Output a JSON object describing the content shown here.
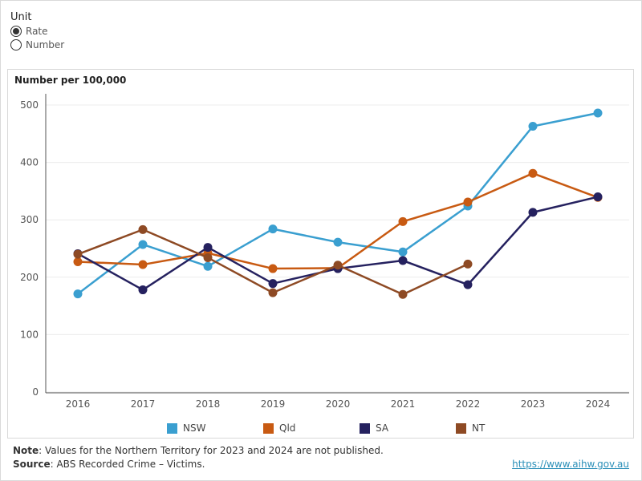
{
  "unit_selector": {
    "title": "Unit",
    "options": [
      {
        "label": "Rate",
        "selected": true
      },
      {
        "label": "Number",
        "selected": false
      }
    ]
  },
  "chart_data": {
    "type": "line",
    "ylabel": "Number per 100,000",
    "x": [
      "2016",
      "2017",
      "2018",
      "2019",
      "2020",
      "2021",
      "2022",
      "2023",
      "2024"
    ],
    "ylim": [
      0,
      500
    ],
    "yticks": [
      0,
      100,
      200,
      300,
      400,
      500
    ],
    "grid": true,
    "legend_position": "bottom",
    "series": [
      {
        "name": "NSW",
        "color": "#3a9fd0",
        "values": [
          171,
          257,
          219,
          284,
          261,
          244,
          324,
          463,
          486
        ]
      },
      {
        "name": "Qld",
        "color": "#c85a12",
        "values": [
          227,
          222,
          242,
          215,
          216,
          297,
          331,
          381,
          339
        ]
      },
      {
        "name": "SA",
        "color": "#25215f",
        "values": [
          241,
          178,
          252,
          189,
          215,
          229,
          187,
          313,
          340
        ]
      },
      {
        "name": "NT",
        "color": "#8e4a24",
        "values": [
          240,
          283,
          234,
          173,
          221,
          170,
          223,
          null,
          null
        ]
      }
    ]
  },
  "footer": {
    "note_label": "Note",
    "note_text": ": Values for the Northern Territory for 2023 and 2024 are not published.",
    "source_label": "Source",
    "source_text": ": ABS Recorded Crime – Victims.",
    "link": "https://www.aihw.gov.au"
  }
}
